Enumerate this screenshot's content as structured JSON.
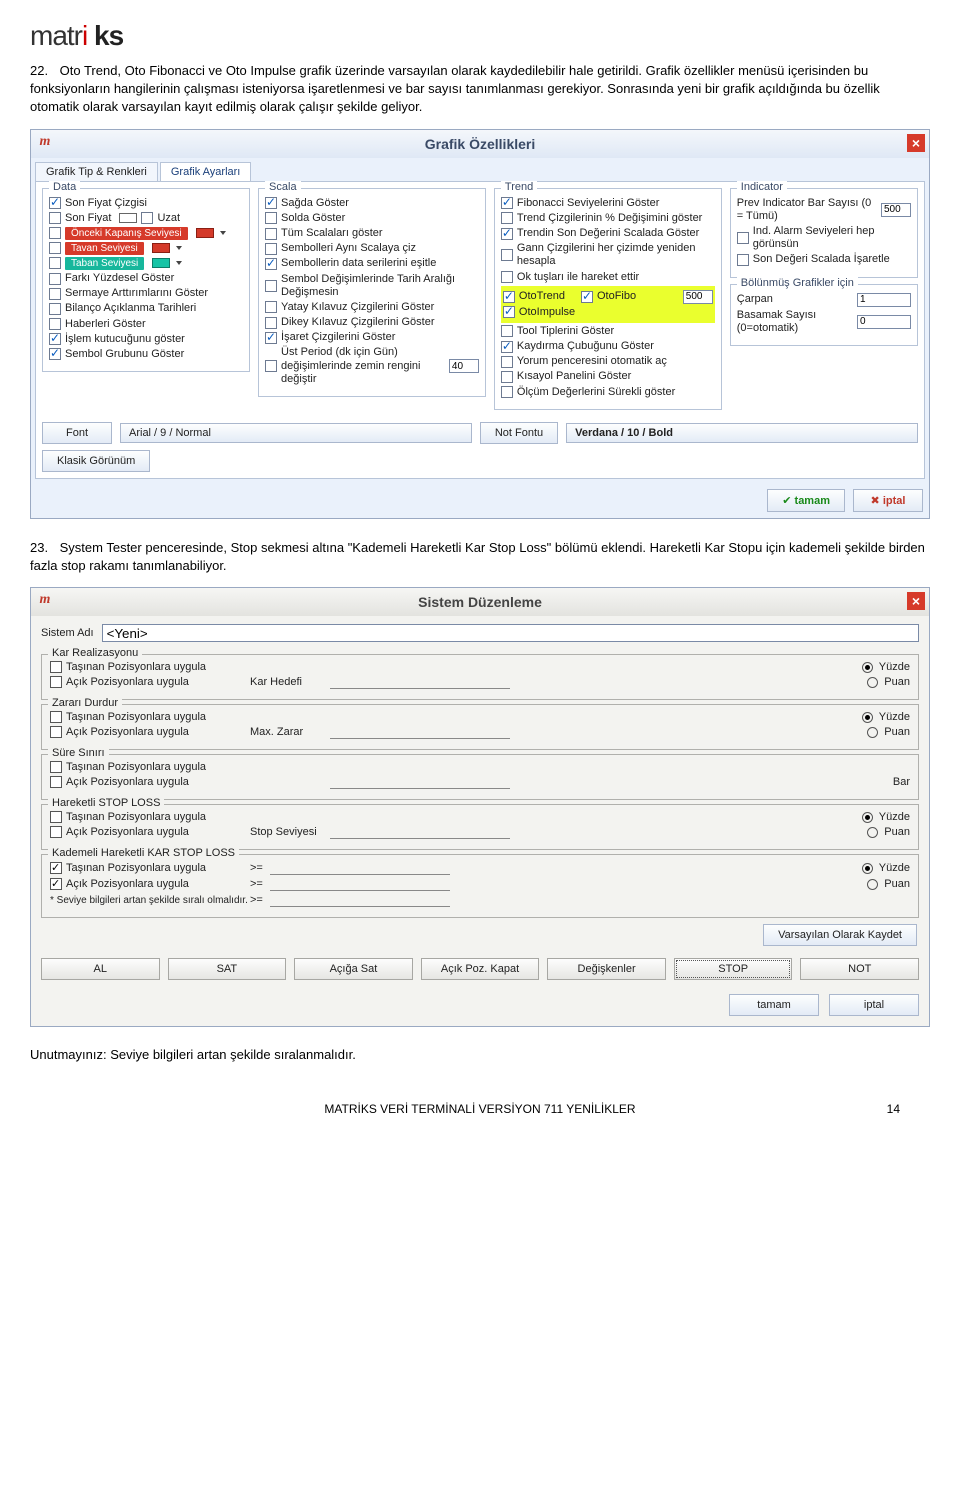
{
  "logo_plain": "matr",
  "logo_red": "i",
  "logo_bold": "ks",
  "para22": {
    "num": "22.",
    "text": "Oto Trend, Oto Fibonacci ve Oto Impulse grafik üzerinde varsayılan olarak kaydedilebilir hale getirildi. Grafik özellikler menüsü içerisinden bu fonksiyonların hangilerinin çalışması isteniyorsa işaretlenmesi ve bar sayısı tanımlanması gerekiyor. Sonrasında yeni bir grafik açıldığında bu özellik otomatik olarak varsayılan kayıt edilmiş olarak çalışır şekilde geliyor."
  },
  "grafik": {
    "title": "Grafik Özellikleri",
    "tabs": [
      "Grafik Tip & Renkleri",
      "Grafik Ayarları"
    ],
    "data_group": "Data",
    "data_items": [
      {
        "chk": true,
        "label": "Son Fiyat Çizgisi"
      },
      {
        "chk": false,
        "label": "Son Fiyat",
        "extra": "Uzat",
        "extra_chk": false
      }
    ],
    "level_items": [
      {
        "chk": false,
        "color": "red",
        "label": "Önceki Kapanış Seviyesi"
      },
      {
        "chk": false,
        "color": "red",
        "label": "Tavan Seviyesi"
      },
      {
        "chk": false,
        "color": "teal",
        "label": "Taban Seviyesi"
      }
    ],
    "data_items2": [
      {
        "chk": false,
        "label": "Farkı Yüzdesel Göster"
      },
      {
        "chk": false,
        "label": "Sermaye Arttırımlarını Göster"
      },
      {
        "chk": false,
        "label": "Bilanço Açıklanma Tarihleri"
      },
      {
        "chk": false,
        "label": "Haberleri Göster"
      },
      {
        "chk": true,
        "label": "İşlem kutucuğunu göster"
      },
      {
        "chk": true,
        "label": "Sembol Grubunu Göster"
      }
    ],
    "scala_group": "Scala",
    "scala_items": [
      {
        "chk": true,
        "label": "Sağda Göster"
      },
      {
        "chk": false,
        "label": "Solda Göster"
      },
      {
        "chk": false,
        "label": "Tüm Scalaları göster"
      },
      {
        "chk": false,
        "label": "Sembolleri Aynı Scalaya çiz"
      },
      {
        "chk": true,
        "label": "Sembollerin data serilerini eşitle"
      },
      {
        "chk": false,
        "label": "Sembol Değişimlerinde Tarih Aralığı Değişmesin"
      },
      {
        "chk": false,
        "label": "Yatay Kılavuz Çizgilerini Göster"
      },
      {
        "chk": false,
        "label": "Dikey Kılavuz Çizgilerini Göster"
      },
      {
        "chk": true,
        "label": "İşaret Çizgilerini Göster"
      }
    ],
    "scala_last": {
      "label": "Üst Period (dk için Gün) değişimlerinde zemin rengini değiştir",
      "value": "40"
    },
    "trend_group": "Trend",
    "trend_items": [
      {
        "chk": true,
        "label": "Fibonacci Seviyelerini Göster"
      },
      {
        "chk": false,
        "label": "Trend Çizgilerinin % Değişimini göster"
      },
      {
        "chk": true,
        "label": "Trendin Son Değerini Scalada Göster"
      },
      {
        "chk": false,
        "label": "Gann Çizgilerini her çizimde yeniden hesapla"
      },
      {
        "chk": false,
        "label": "Ok tuşları ile hareket ettir"
      }
    ],
    "oto_items": [
      {
        "chk": true,
        "label": "OtoTrend"
      },
      {
        "chk": true,
        "label": "OtoFibo",
        "value": "500"
      },
      {
        "chk": true,
        "label": "OtoImpulse"
      }
    ],
    "trend_items2": [
      {
        "chk": false,
        "label": "Tool Tiplerini Göster"
      },
      {
        "chk": true,
        "label": "Kaydırma Çubuğunu Göster"
      },
      {
        "chk": false,
        "label": "Yorum penceresini otomatik aç"
      },
      {
        "chk": false,
        "label": "Kısayol Panelini Göster"
      },
      {
        "chk": false,
        "label": "Ölçüm Değerlerini Sürekli göster"
      }
    ],
    "indicator_group": "Indicator",
    "ind_bar_label": "Prev Indicator Bar Sayısı (0 = Tümü)",
    "ind_bar_value": "500",
    "ind_items": [
      {
        "chk": false,
        "label": "Ind. Alarm Seviyeleri hep görünsün"
      },
      {
        "chk": false,
        "label": "Son Değeri Scalada İşaretle"
      }
    ],
    "bolun_group": "Bölünmüş Grafikler için",
    "carpan_label": "Çarpan",
    "carpan_value": "1",
    "basamak_label": "Basamak Sayısı (0=otomatik)",
    "basamak_value": "0",
    "font_btn": "Font",
    "font_val": "Arial / 9 / Normal",
    "notfont_btn": "Not Fontu",
    "notfont_val": "Verdana / 10 / Bold",
    "klasik_btn": "Klasik Görünüm",
    "tamam": "tamam",
    "iptal": "iptal"
  },
  "para23": {
    "num": "23.",
    "text": "System Tester penceresinde, Stop sekmesi altına \"Kademeli Hareketli Kar Stop Loss\" bölümü eklendi. Hareketli Kar Stopu için kademeli şekilde birden fazla stop rakamı tanımlanabiliyor."
  },
  "sistem": {
    "title": "Sistem Düzenleme",
    "sysname_label": "Sistem Adı",
    "sysname_value": "<Yeni>",
    "groups": [
      {
        "title": "Kar Realizasyonu",
        "mid": "Kar Hedefi",
        "units": [
          "Yüzde",
          "Puan"
        ],
        "radio": 0,
        "rows": [
          {
            "chk": false,
            "label": "Taşınan Pozisyonlara uygula"
          },
          {
            "chk": false,
            "label": "Açık Pozisyonlara uygula"
          }
        ]
      },
      {
        "title": "Zararı Durdur",
        "mid": "Max. Zarar",
        "units": [
          "Yüzde",
          "Puan"
        ],
        "radio": 0,
        "rows": [
          {
            "chk": false,
            "label": "Taşınan Pozisyonlara uygula"
          },
          {
            "chk": false,
            "label": "Açık Pozisyonlara uygula"
          }
        ]
      },
      {
        "title": "Süre Sınırı",
        "mid": "",
        "units": [
          "Bar"
        ],
        "radio": -1,
        "rows": [
          {
            "chk": false,
            "label": "Taşınan Pozisyonlara uygula"
          },
          {
            "chk": false,
            "label": "Açık Pozisyonlara uygula"
          }
        ]
      },
      {
        "title": "Hareketli STOP LOSS",
        "mid": "Stop Seviyesi",
        "units": [
          "Yüzde",
          "Puan"
        ],
        "radio": 0,
        "rows": [
          {
            "chk": false,
            "label": "Taşınan Pozisyonlara uygula"
          },
          {
            "chk": false,
            "label": "Açık Pozisyonlara uygula"
          }
        ]
      }
    ],
    "kademeli": {
      "title": "Kademeli Hareketli KAR STOP LOSS",
      "rows": [
        {
          "chk": true,
          "label": "Taşınan Pozisyonlara uygula",
          "ge": ">="
        },
        {
          "chk": true,
          "label": "Açık Pozisyonlara uygula",
          "ge": ">="
        }
      ],
      "extra_ge": ">=",
      "units": [
        "Yüzde",
        "Puan"
      ],
      "radio": 0,
      "note": "* Seviye bilgileri artan şekilde sıralı olmalıdır."
    },
    "save_default": "Varsayılan Olarak Kaydet",
    "tabs": [
      "AL",
      "SAT",
      "Açığa Sat",
      "Açık Poz. Kapat",
      "Değişkenler",
      "STOP",
      "NOT"
    ],
    "tamam": "tamam",
    "iptal": "iptal"
  },
  "note": "Unutmayınız: Seviye bilgileri artan şekilde sıralanmalıdır.",
  "footer": "MATRİKS VERİ TERMİNALİ VERSİYON 711 YENİLİKLER",
  "page_num": "14"
}
